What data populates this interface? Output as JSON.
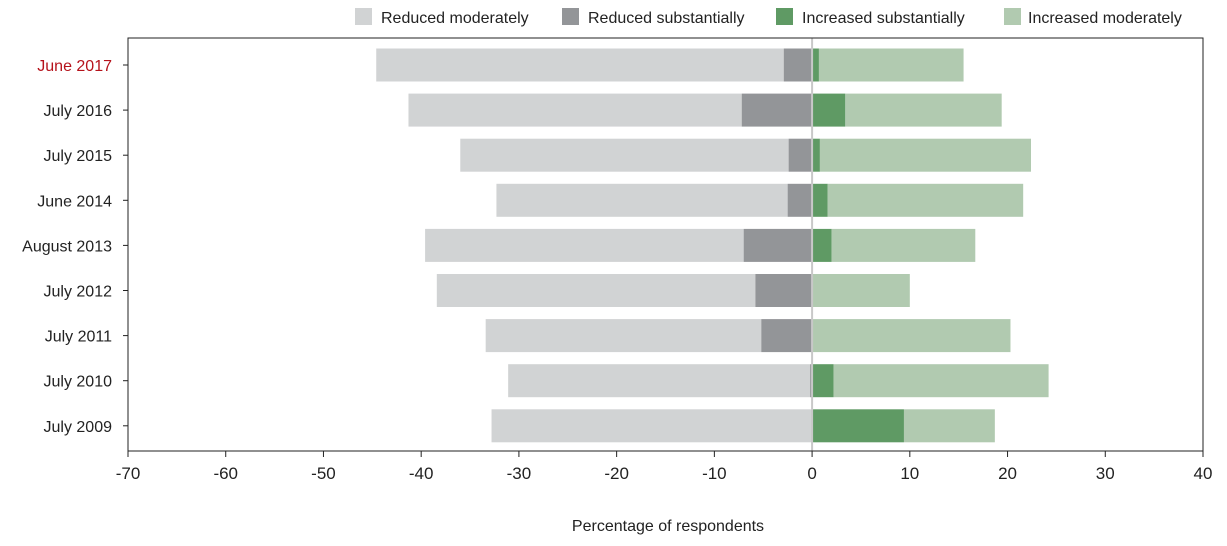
{
  "chart_data": {
    "type": "bar",
    "orientation": "horizontal",
    "stacking": "diverging",
    "title": "",
    "xlabel": "Percentage of respondents",
    "ylabel": "",
    "xlim": [
      -70,
      40
    ],
    "xticks": [
      -70,
      -60,
      -50,
      -40,
      -30,
      -20,
      -10,
      0,
      10,
      20,
      30,
      40
    ],
    "grid": false,
    "legend_position": "top",
    "categories": [
      "June 2017",
      "July 2016",
      "July 2015",
      "June 2014",
      "August 2013",
      "July 2012",
      "July 2011",
      "July 2010",
      "July 2009"
    ],
    "highlight_category": "June 2017",
    "highlight_color": "#b5121b",
    "series": [
      {
        "name": "Reduced moderately",
        "color": "#d1d3d4",
        "values": [
          -41.7,
          -34.1,
          -33.6,
          -29.8,
          -32.6,
          -32.6,
          -28.2,
          -30.9,
          -32.8
        ]
      },
      {
        "name": "Reduced substantially",
        "color": "#939598",
        "values": [
          -2.9,
          -7.2,
          -2.4,
          -2.5,
          -7.0,
          -5.8,
          -5.2,
          -0.2,
          0
        ]
      },
      {
        "name": "Increased substantially",
        "color": "#5f9a64",
        "values": [
          0.7,
          3.4,
          0.8,
          1.6,
          2.0,
          0,
          0,
          2.2,
          9.4
        ]
      },
      {
        "name": "Increased moderately",
        "color": "#b1cab0",
        "values": [
          14.8,
          16.0,
          21.6,
          20.0,
          14.7,
          10.0,
          20.3,
          22.0,
          9.3
        ]
      }
    ],
    "zero_line_color": "#c8c8c8"
  }
}
